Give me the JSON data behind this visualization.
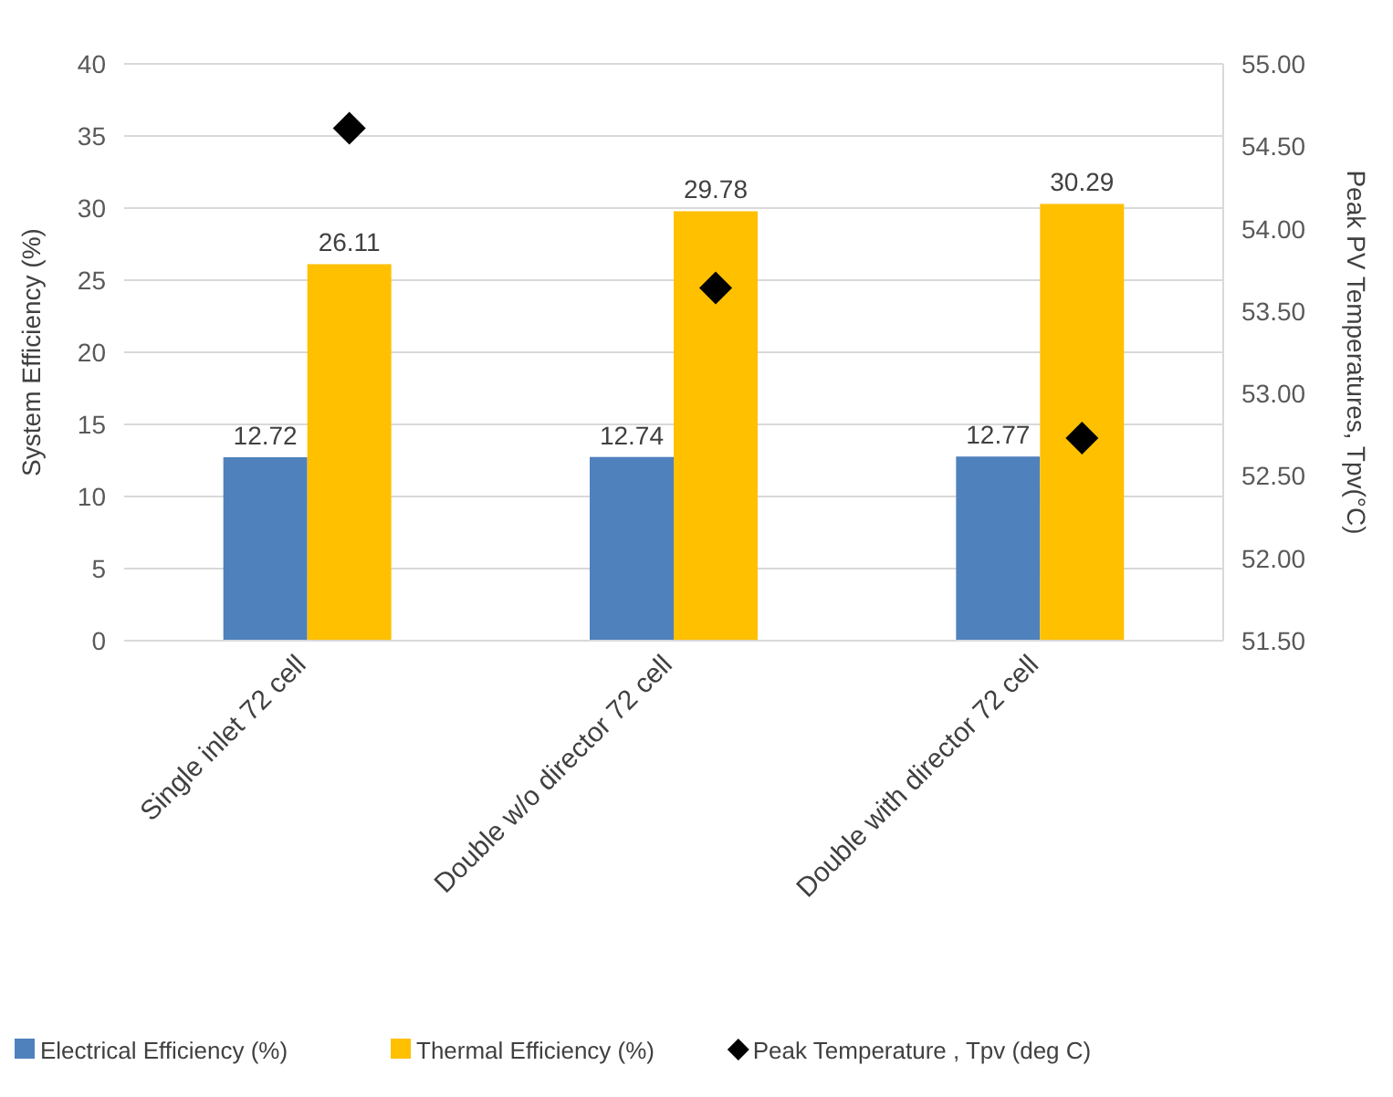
{
  "chart_data": {
    "type": "bar",
    "ylabel": "System Efficiency (%)",
    "y2label": "Peak PV Temperatures, Tpv(°C)",
    "categories": [
      "Single inlet 72 cell",
      "Double w/o director 72 cell",
      "Double with director 72 cell"
    ],
    "series": [
      {
        "name": "Electrical Efficiency (%)",
        "color": "#4f81bd",
        "values": [
          12.72,
          12.74,
          12.77
        ],
        "value_labels": [
          "12.72",
          "12.74",
          "12.77"
        ]
      },
      {
        "name": "Thermal Efficiency (%)",
        "color": "#ffc000",
        "values": [
          26.11,
          29.78,
          30.29
        ],
        "value_labels": [
          "26.11",
          "29.78",
          "30.29"
        ]
      },
      {
        "name": "Peak Temperature , Tpv (deg C)",
        "type": "scatter",
        "axis": "y2",
        "marker": "diamond",
        "color": "#000000",
        "values": [
          54.61,
          53.64,
          52.73
        ]
      }
    ],
    "ylim": [
      0,
      40
    ],
    "yticks": [
      0,
      5,
      10,
      15,
      20,
      25,
      30,
      35,
      40
    ],
    "y2lim": [
      51.5,
      55
    ],
    "y2ticks": [
      {
        "value": 51.5,
        "label": "51.50"
      },
      {
        "value": 52,
        "label": "52.00"
      },
      {
        "value": 52.5,
        "label": "52.50"
      },
      {
        "value": 53,
        "label": "53.00"
      },
      {
        "value": 53.5,
        "label": "53.50"
      },
      {
        "value": 54,
        "label": "54.00"
      },
      {
        "value": 54.5,
        "label": "54.50"
      },
      {
        "value": 55,
        "label": "55.00"
      }
    ],
    "grid": "y",
    "legend": "bottom"
  }
}
